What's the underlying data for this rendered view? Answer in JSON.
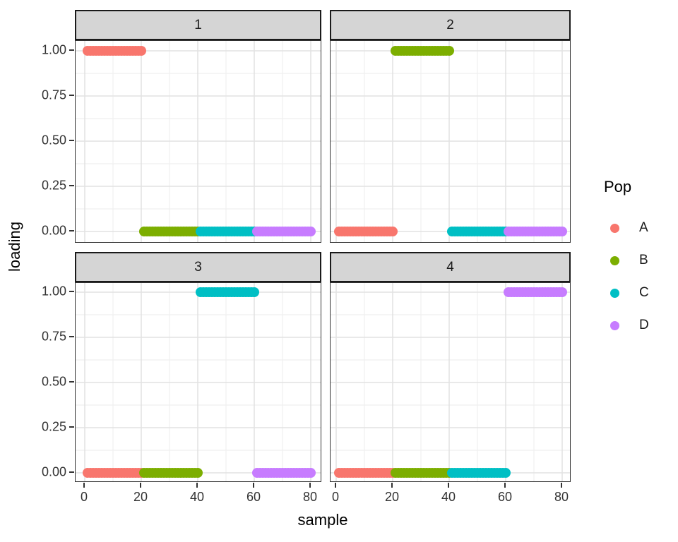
{
  "chart_data": {
    "type": "scatter",
    "title": "",
    "xlabel": "sample",
    "ylabel": "loading",
    "xlim": [
      0,
      80
    ],
    "ylim": [
      0,
      1
    ],
    "x_ticks": [
      0,
      20,
      40,
      60,
      80
    ],
    "x_minor_ticks": [
      10,
      30,
      50,
      70
    ],
    "y_ticks": [
      1.0,
      0.75,
      0.5,
      0.25,
      0.0
    ],
    "y_tick_labels": [
      "1.00",
      "0.75",
      "0.50",
      "0.25",
      "0.00"
    ],
    "y_minor_ticks": [
      0.875,
      0.625,
      0.375,
      0.125
    ],
    "grid": true,
    "facet_layout": "2x2",
    "legend": {
      "title": "Pop",
      "position": "right",
      "entries": [
        {
          "label": "A",
          "color": "#F8766D"
        },
        {
          "label": "B",
          "color": "#7CAE00"
        },
        {
          "label": "C",
          "color": "#00BFC4"
        },
        {
          "label": "D",
          "color": "#C77CFF"
        }
      ]
    },
    "palette": {
      "A": "#F8766D",
      "B": "#7CAE00",
      "C": "#00BFC4",
      "D": "#C77CFF"
    },
    "colors": {
      "strip_fill": "#d5d5d5",
      "strip_border": "#1a1a1a",
      "panel_border": "#333333",
      "grid_major": "#e2e2e2",
      "grid_minor": "#efefef"
    },
    "facets": [
      {
        "label": "1",
        "series": [
          {
            "pop": "A",
            "sample_from": 1,
            "sample_to": 20,
            "loading": 1
          },
          {
            "pop": "B",
            "sample_from": 21,
            "sample_to": 40,
            "loading": 0
          },
          {
            "pop": "C",
            "sample_from": 41,
            "sample_to": 60,
            "loading": 0
          },
          {
            "pop": "D",
            "sample_from": 61,
            "sample_to": 80,
            "loading": 0
          }
        ]
      },
      {
        "label": "2",
        "series": [
          {
            "pop": "A",
            "sample_from": 1,
            "sample_to": 20,
            "loading": 0
          },
          {
            "pop": "B",
            "sample_from": 21,
            "sample_to": 40,
            "loading": 1
          },
          {
            "pop": "C",
            "sample_from": 41,
            "sample_to": 60,
            "loading": 0
          },
          {
            "pop": "D",
            "sample_from": 61,
            "sample_to": 80,
            "loading": 0
          }
        ]
      },
      {
        "label": "3",
        "series": [
          {
            "pop": "A",
            "sample_from": 1,
            "sample_to": 20,
            "loading": 0
          },
          {
            "pop": "B",
            "sample_from": 21,
            "sample_to": 40,
            "loading": 0
          },
          {
            "pop": "C",
            "sample_from": 41,
            "sample_to": 60,
            "loading": 1
          },
          {
            "pop": "D",
            "sample_from": 61,
            "sample_to": 80,
            "loading": 0
          }
        ]
      },
      {
        "label": "4",
        "series": [
          {
            "pop": "A",
            "sample_from": 1,
            "sample_to": 20,
            "loading": 0
          },
          {
            "pop": "B",
            "sample_from": 21,
            "sample_to": 40,
            "loading": 0
          },
          {
            "pop": "C",
            "sample_from": 41,
            "sample_to": 60,
            "loading": 0
          },
          {
            "pop": "D",
            "sample_from": 61,
            "sample_to": 80,
            "loading": 1
          }
        ]
      }
    ]
  }
}
